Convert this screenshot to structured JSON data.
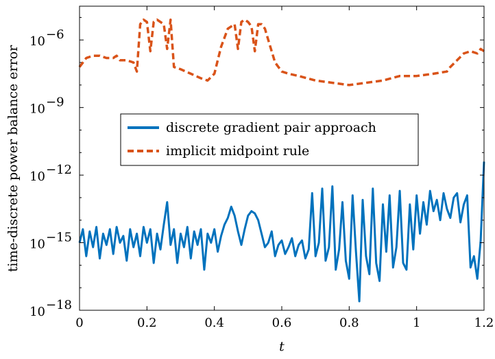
{
  "chart_data": {
    "type": "line",
    "title": "",
    "xlabel": "t",
    "ylabel": "time-discrete power balance error",
    "xlim": [
      0,
      1.2
    ],
    "ylim_log10": [
      -18,
      -4.5
    ],
    "yscale": "log",
    "grid": false,
    "legend_position": "center-left",
    "x_ticks": [
      0,
      0.2,
      0.4,
      0.6,
      0.8,
      1,
      1.2
    ],
    "x_tick_labels": [
      "0",
      "0.2",
      "0.4",
      "0.6",
      "0.8",
      "1",
      "1.2"
    ],
    "y_ticks_log10": [
      -18,
      -15,
      -12,
      -9,
      -6
    ],
    "y_tick_labels": [
      "10",
      "10",
      "10",
      "10",
      "10"
    ],
    "y_tick_exponents": [
      "−18",
      "−15",
      "−12",
      "−9",
      "−6"
    ],
    "series": [
      {
        "name": "discrete gradient pair approach",
        "color": "#0072bd",
        "style": "solid",
        "x": [
          0.0,
          0.01,
          0.02,
          0.03,
          0.04,
          0.05,
          0.06,
          0.07,
          0.08,
          0.09,
          0.1,
          0.11,
          0.12,
          0.13,
          0.14,
          0.15,
          0.16,
          0.17,
          0.18,
          0.19,
          0.2,
          0.21,
          0.22,
          0.23,
          0.24,
          0.25,
          0.26,
          0.27,
          0.28,
          0.29,
          0.3,
          0.31,
          0.32,
          0.33,
          0.34,
          0.35,
          0.36,
          0.37,
          0.38,
          0.39,
          0.4,
          0.41,
          0.42,
          0.43,
          0.44,
          0.45,
          0.46,
          0.47,
          0.48,
          0.49,
          0.5,
          0.51,
          0.52,
          0.53,
          0.54,
          0.55,
          0.56,
          0.57,
          0.58,
          0.59,
          0.6,
          0.61,
          0.62,
          0.63,
          0.64,
          0.65,
          0.66,
          0.67,
          0.68,
          0.69,
          0.7,
          0.71,
          0.72,
          0.73,
          0.74,
          0.75,
          0.76,
          0.77,
          0.78,
          0.79,
          0.8,
          0.81,
          0.82,
          0.83,
          0.84,
          0.85,
          0.86,
          0.87,
          0.88,
          0.89,
          0.9,
          0.91,
          0.92,
          0.93,
          0.94,
          0.95,
          0.96,
          0.97,
          0.98,
          0.99,
          1.0,
          1.01,
          1.02,
          1.03,
          1.04,
          1.05,
          1.06,
          1.07,
          1.08,
          1.09,
          1.1,
          1.11,
          1.12,
          1.13,
          1.14,
          1.15,
          1.16,
          1.17,
          1.18,
          1.19,
          1.2
        ],
        "log10_y": [
          -15.0,
          -14.4,
          -15.6,
          -14.5,
          -15.2,
          -14.3,
          -15.7,
          -14.6,
          -15.1,
          -14.4,
          -15.5,
          -14.3,
          -15.0,
          -14.7,
          -15.8,
          -14.4,
          -15.2,
          -14.6,
          -15.6,
          -14.3,
          -15.0,
          -14.4,
          -15.9,
          -14.6,
          -15.3,
          -14.2,
          -13.2,
          -15.1,
          -14.4,
          -15.9,
          -14.6,
          -15.2,
          -14.3,
          -15.7,
          -14.5,
          -15.1,
          -14.4,
          -16.2,
          -14.6,
          -15.0,
          -14.4,
          -15.4,
          -14.7,
          -14.2,
          -13.9,
          -13.4,
          -13.8,
          -14.5,
          -15.1,
          -14.4,
          -13.8,
          -13.6,
          -13.7,
          -14.0,
          -14.6,
          -15.2,
          -15.0,
          -14.5,
          -15.6,
          -15.1,
          -14.9,
          -15.5,
          -15.2,
          -14.8,
          -15.6,
          -15.1,
          -14.9,
          -15.7,
          -15.3,
          -12.8,
          -15.6,
          -15.0,
          -12.6,
          -15.8,
          -15.2,
          -12.5,
          -16.2,
          -15.3,
          -13.2,
          -15.8,
          -16.6,
          -12.9,
          -15.4,
          -17.6,
          -13.1,
          -15.6,
          -16.4,
          -12.6,
          -15.9,
          -16.7,
          -13.3,
          -15.4,
          -12.9,
          -16.1,
          -15.2,
          -12.7,
          -15.9,
          -16.2,
          -13.3,
          -15.3,
          -12.9,
          -14.6,
          -13.2,
          -14.2,
          -12.7,
          -13.6,
          -13.1,
          -14.0,
          -12.8,
          -13.5,
          -13.9,
          -13.0,
          -12.8,
          -14.1,
          -13.3,
          -12.9,
          -16.1,
          -15.6,
          -16.6,
          -14.9,
          -11.4
        ]
      },
      {
        "name": "implicit midpoint rule",
        "color": "#d95319",
        "style": "dashed",
        "x": [
          0.0,
          0.02,
          0.04,
          0.06,
          0.08,
          0.1,
          0.11,
          0.12,
          0.14,
          0.16,
          0.17,
          0.18,
          0.19,
          0.2,
          0.21,
          0.22,
          0.23,
          0.24,
          0.25,
          0.26,
          0.27,
          0.28,
          0.3,
          0.33,
          0.36,
          0.38,
          0.4,
          0.42,
          0.44,
          0.46,
          0.47,
          0.48,
          0.49,
          0.5,
          0.51,
          0.52,
          0.53,
          0.54,
          0.55,
          0.56,
          0.58,
          0.6,
          0.62,
          0.65,
          0.7,
          0.75,
          0.8,
          0.85,
          0.9,
          0.95,
          1.0,
          1.05,
          1.09,
          1.1,
          1.12,
          1.14,
          1.16,
          1.18,
          1.19,
          1.2
        ],
        "log10_y": [
          -7.2,
          -6.8,
          -6.7,
          -6.7,
          -6.8,
          -6.8,
          -6.7,
          -6.9,
          -6.9,
          -7.0,
          -7.4,
          -5.3,
          -5.1,
          -5.2,
          -6.5,
          -5.2,
          -5.1,
          -5.2,
          -5.3,
          -6.4,
          -5.1,
          -7.2,
          -7.3,
          -7.5,
          -7.7,
          -7.8,
          -7.5,
          -6.3,
          -5.5,
          -5.3,
          -6.4,
          -5.2,
          -5.1,
          -5.2,
          -5.4,
          -6.5,
          -5.3,
          -5.3,
          -5.5,
          -6.0,
          -7.0,
          -7.4,
          -7.5,
          -7.6,
          -7.8,
          -7.9,
          -8.0,
          -7.9,
          -7.8,
          -7.6,
          -7.6,
          -7.5,
          -7.4,
          -7.2,
          -6.9,
          -6.6,
          -6.5,
          -6.6,
          -6.4,
          -6.5
        ]
      }
    ]
  }
}
